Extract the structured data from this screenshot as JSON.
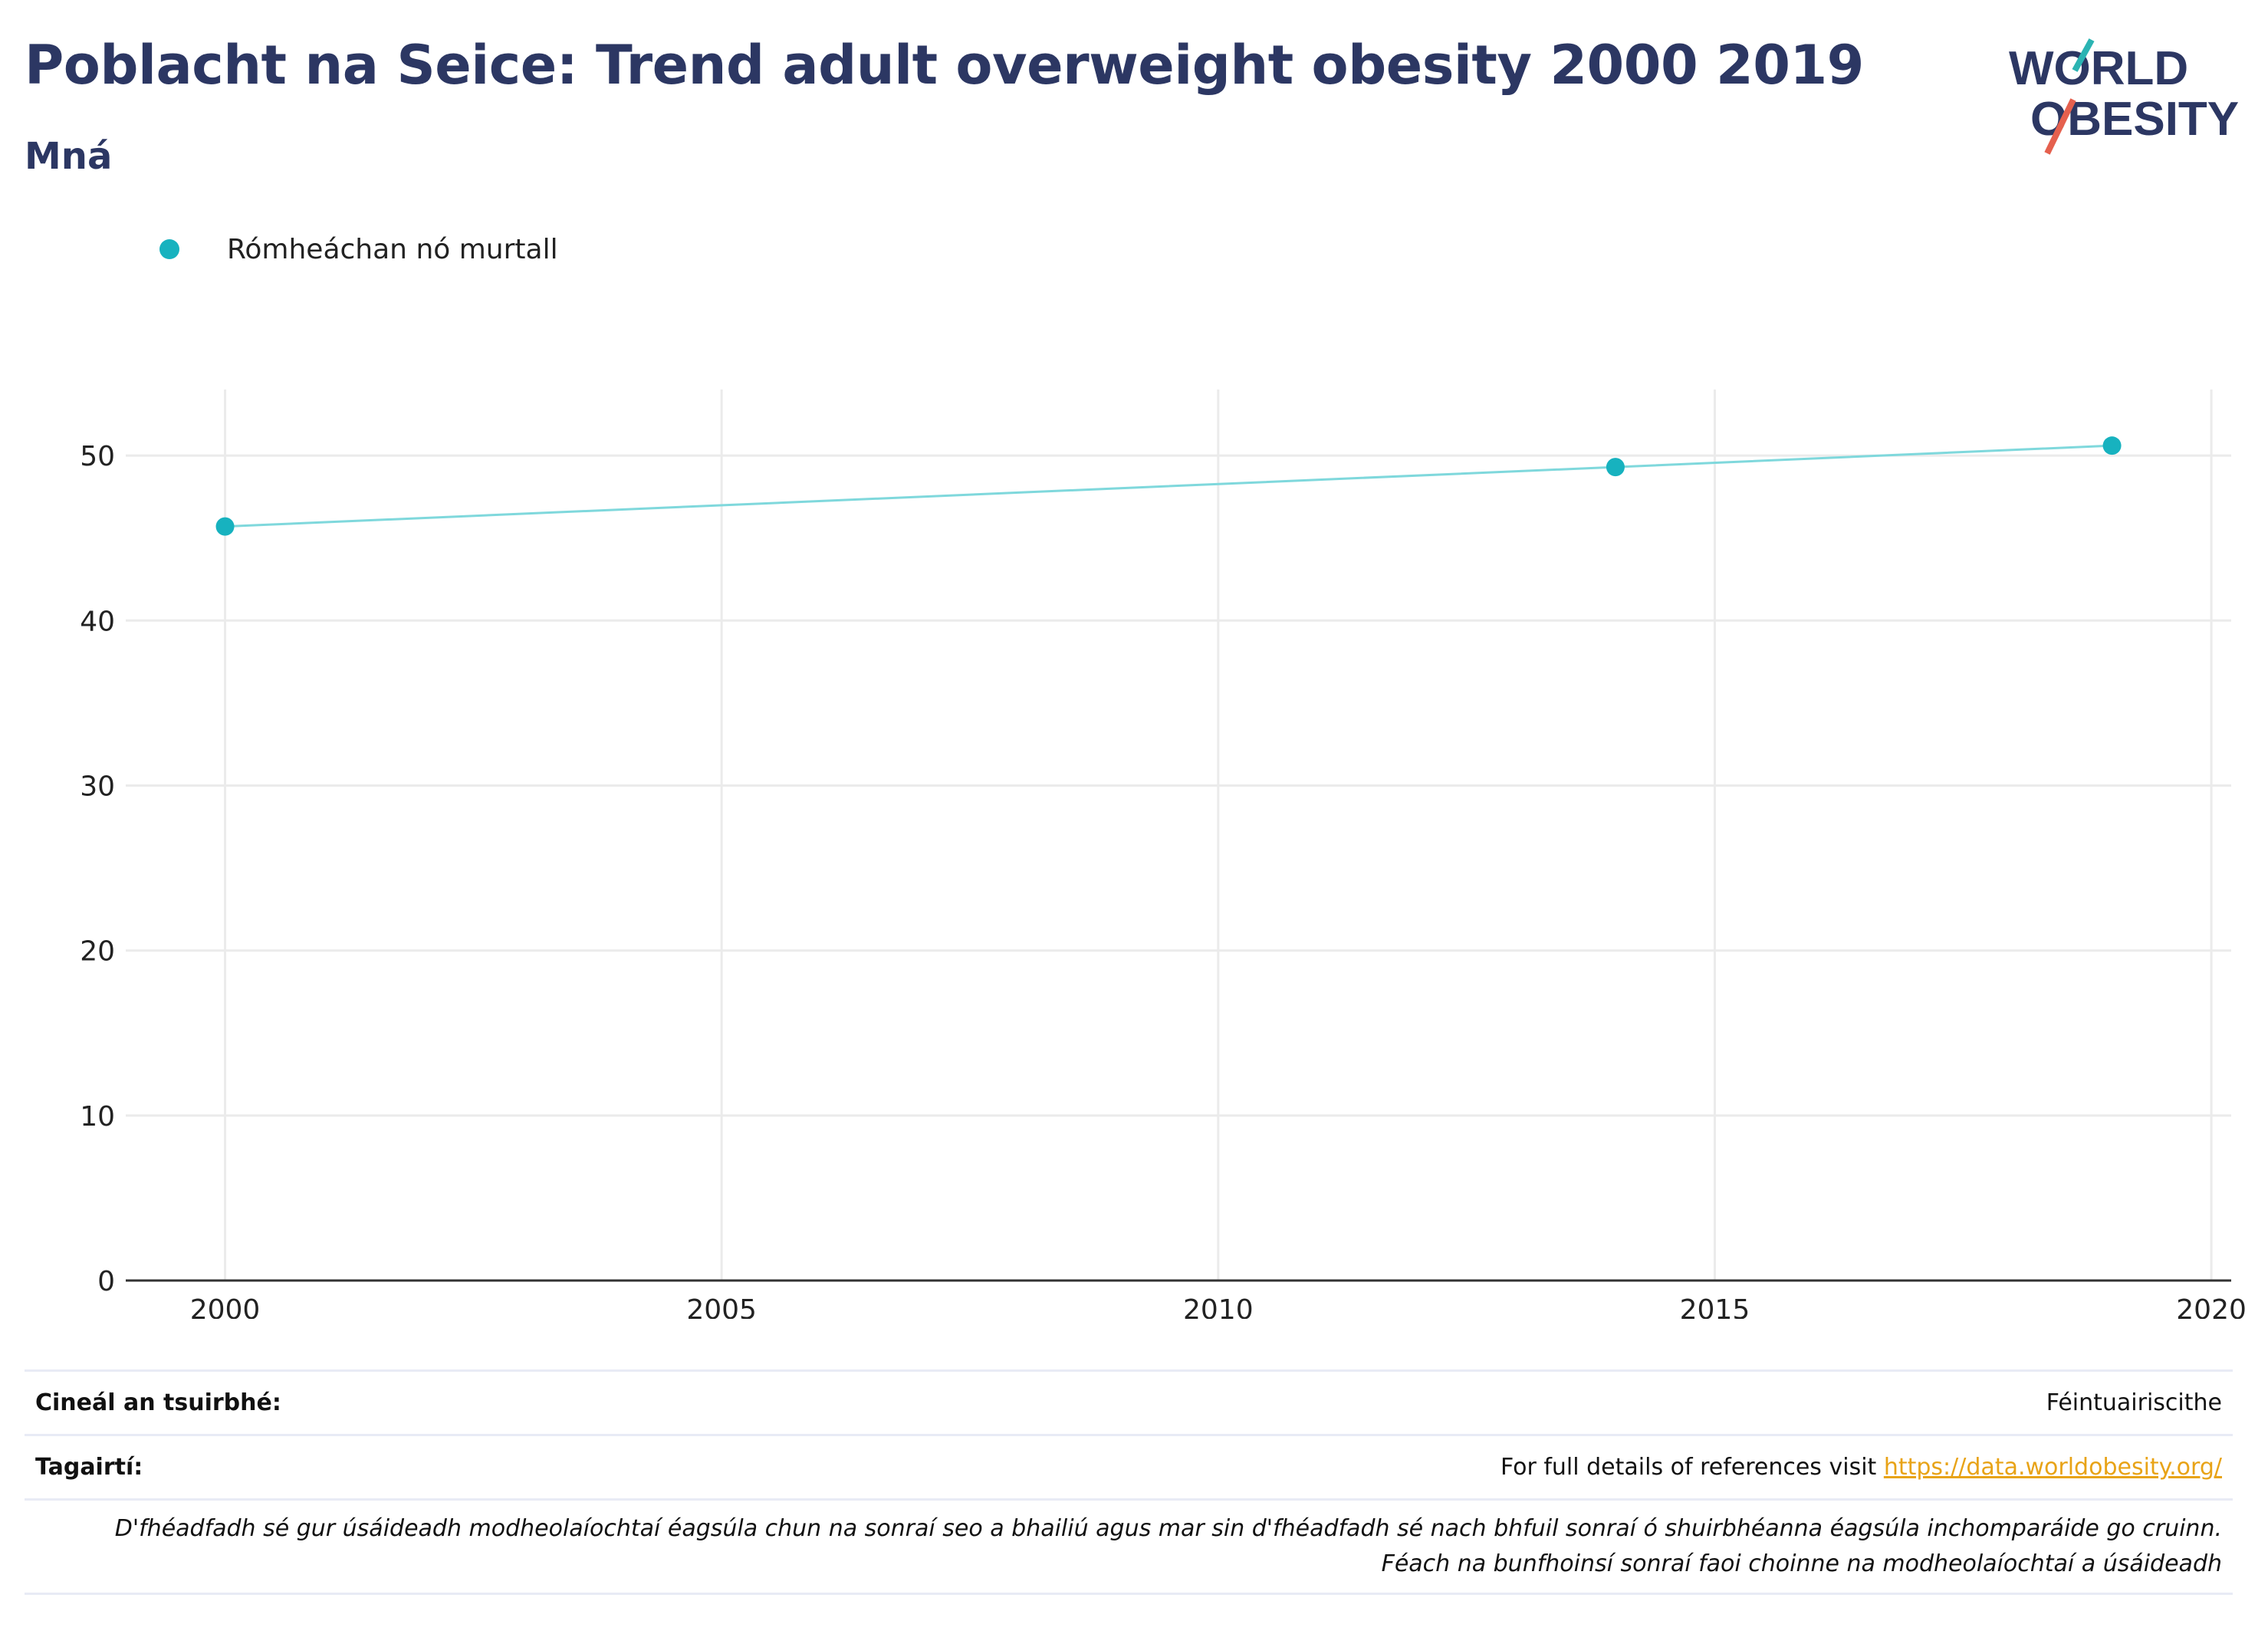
{
  "header": {
    "title": "Poblacht na Seice: Trend adult overweight obesity 2000 2019",
    "subtitle": "Mná"
  },
  "logo": {
    "line1": "WORLD",
    "line2": "OBESITY"
  },
  "colors": {
    "series": "#17b2bf",
    "line": "#7fd8dc",
    "title": "#2c3763",
    "link": "#e8a317",
    "logo_teal": "#2bb4b3",
    "logo_red": "#e5604e"
  },
  "chart_data": {
    "type": "line",
    "series": [
      {
        "name": "Rómheáchan nó murtall",
        "x": [
          2000,
          2014,
          2019
        ],
        "y": [
          45.7,
          49.3,
          50.6
        ]
      }
    ],
    "xlim": [
      1999,
      2020.2
    ],
    "ylim": [
      0,
      54
    ],
    "xticks": [
      2000,
      2005,
      2010,
      2015,
      2020
    ],
    "yticks": [
      0,
      10,
      20,
      30,
      40,
      50
    ],
    "grid": true,
    "legend": "top-left"
  },
  "footer": {
    "survey_label": "Cineál an tsuirbhé:",
    "survey_value": "Féintuairiscithe",
    "refs_label": "Tagairtí:",
    "refs_text": "For full details of references visit ",
    "refs_link": "https://data.worldobesity.org/",
    "note_line1": "D'fhéadfadh sé gur úsáideadh modheolaíochtaí éagsúla chun na sonraí seo a bhailiú agus mar sin d'fhéadfadh sé nach bhfuil sonraí ó shuirbhéanna éagsúla inchomparáide go cruinn.",
    "note_line2": "Féach na bunfhoinsí sonraí faoi choinne na modheolaíochtaí a úsáideadh"
  }
}
